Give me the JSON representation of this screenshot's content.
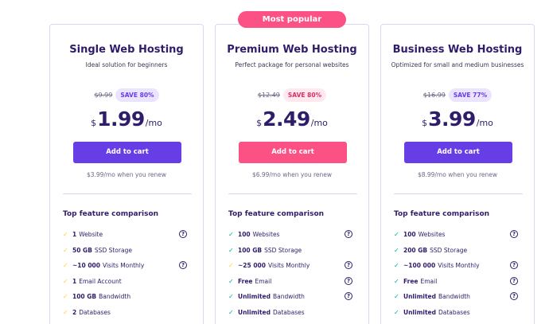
{
  "popular_badge": "Most popular",
  "feature_heading": "Top feature comparison",
  "colors": {
    "primary": "#673de6",
    "pink": "#fc5185",
    "dark": "#2f1c6a",
    "check_basic": "#ffcd35",
    "check_premium": "#00b090"
  },
  "plans": [
    {
      "name": "Single Web Hosting",
      "subtitle": "Ideal solution for beginners",
      "old_price": "$9.99",
      "save": "SAVE 80%",
      "currency": "$",
      "price": "1.99",
      "period": "/mo",
      "cta": "Add to cart",
      "renew": "$3.99/mo when you renew",
      "features": [
        {
          "value": "1",
          "label": "Website",
          "help": true
        },
        {
          "value": "50 GB",
          "label": "SSD Storage",
          "help": false
        },
        {
          "value": "~10 000",
          "label": "Visits Monthly",
          "help": true
        },
        {
          "value": "1",
          "label": "Email Account",
          "help": false
        },
        {
          "value": "100 GB",
          "label": "Bandwidth",
          "help": false
        },
        {
          "value": "2",
          "label": "Databases",
          "help": false
        }
      ]
    },
    {
      "name": "Premium Web Hosting",
      "subtitle": "Perfect package for personal websites",
      "old_price": "$12.49",
      "save": "SAVE 80%",
      "currency": "$",
      "price": "2.49",
      "period": "/mo",
      "cta": "Add to cart",
      "renew": "$6.99/mo when you renew",
      "features": [
        {
          "value": "100",
          "label": "Websites",
          "help": true
        },
        {
          "value": "100 GB",
          "label": "SSD Storage",
          "help": false
        },
        {
          "value": "~25 000",
          "label": "Visits Monthly",
          "help": true
        },
        {
          "value": "Free",
          "label": "Email",
          "help": true
        },
        {
          "value": "Unlimited",
          "label": "Bandwidth",
          "help": true
        },
        {
          "value": "Unlimited",
          "label": "Databases",
          "help": false
        }
      ]
    },
    {
      "name": "Business Web Hosting",
      "subtitle": "Optimized for small and medium businesses",
      "old_price": "$16.99",
      "save": "SAVE 77%",
      "currency": "$",
      "price": "3.99",
      "period": "/mo",
      "cta": "Add to cart",
      "renew": "$8.99/mo when you renew",
      "features": [
        {
          "value": "100",
          "label": "Websites",
          "help": true
        },
        {
          "value": "200 GB",
          "label": "SSD Storage",
          "help": false
        },
        {
          "value": "~100 000",
          "label": "Visits Monthly",
          "help": true
        },
        {
          "value": "Free",
          "label": "Email",
          "help": true
        },
        {
          "value": "Unlimited",
          "label": "Bandwidth",
          "help": true
        },
        {
          "value": "Unlimited",
          "label": "Databases",
          "help": false
        }
      ]
    }
  ]
}
